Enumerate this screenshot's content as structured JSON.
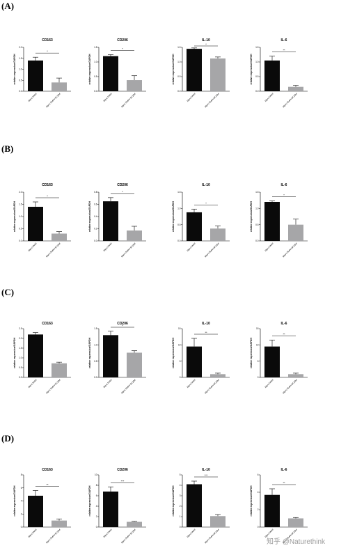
{
  "figure": {
    "watermark": "知乎 @Naturethink"
  },
  "colors": {
    "bar1": "#0a0a0a",
    "bar2": "#a6a6a8",
    "axis": "#000000"
  },
  "chart_data": [
    {
      "panel": "(A)",
      "charts": [
        {
          "type": "bar",
          "title": "CD163",
          "ylabel": "relative expression/GAPDH",
          "categories": [
            "Mφ+LTA4H",
            "Mφ+LTA4H+SC1B4"
          ],
          "values": [
            1.4,
            0.4
          ],
          "errors": [
            0.15,
            0.2
          ],
          "ylim": [
            0,
            2
          ],
          "yticks": [
            0,
            0.5,
            1.0,
            1.5,
            2.0
          ],
          "significance": "*"
        },
        {
          "type": "bar",
          "title": "CD206",
          "ylabel": "relative expression/GAPDH",
          "categories": [
            "Mφ+LTA4H",
            "Mφ+LTA4H+SC1B4"
          ],
          "values": [
            1.2,
            0.38
          ],
          "errors": [
            0.05,
            0.15
          ],
          "ylim": [
            0,
            1.5
          ],
          "yticks": [
            0,
            0.5,
            1.0,
            1.5
          ],
          "significance": "*"
        },
        {
          "type": "bar",
          "title": "IL-10",
          "ylabel": "relative expression/GAPDH",
          "categories": [
            "Mφ+LTA4H",
            "Mφ+LTA4H+SC1B4"
          ],
          "values": [
            1.45,
            1.12
          ],
          "errors": [
            0.03,
            0.05
          ],
          "ylim": [
            0,
            1.5
          ],
          "yticks": [
            0,
            0.5,
            1.0,
            1.5
          ],
          "significance": "*"
        },
        {
          "type": "bar",
          "title": "IL-6",
          "ylabel": "relative expression/GAPDH",
          "categories": [
            "Mφ+LTA4H",
            "Mφ+LTA4H+SC1B4"
          ],
          "values": [
            1.05,
            0.15
          ],
          "errors": [
            0.15,
            0.05
          ],
          "ylim": [
            0,
            1.5
          ],
          "yticks": [
            0,
            0.5,
            1.0,
            1.5
          ],
          "significance": "**"
        }
      ]
    },
    {
      "panel": "(B)",
      "charts": [
        {
          "type": "bar",
          "title": "CD163",
          "ylabel": "relative expression/GAPDH",
          "categories": [
            "Mφ+LTA4H",
            "Mφ+LTA4H+SC1B4"
          ],
          "values": [
            1.4,
            0.3
          ],
          "errors": [
            0.2,
            0.08
          ],
          "ylim": [
            0,
            2
          ],
          "yticks": [
            0,
            0.5,
            1.0,
            1.5,
            2.0
          ],
          "significance": "*"
        },
        {
          "type": "bar",
          "title": "CD206",
          "ylabel": "relative expression/GAPDH",
          "categories": [
            "Mφ+LTA4H",
            "Mφ+LTA4H+SC1B4"
          ],
          "values": [
            0.65,
            0.17
          ],
          "errors": [
            0.06,
            0.07
          ],
          "ylim": [
            0,
            0.8
          ],
          "yticks": [
            0,
            0.2,
            0.4,
            0.6,
            0.8
          ],
          "significance": "*"
        },
        {
          "type": "bar",
          "title": "IL-10",
          "ylabel": "relative expression/GAPDH",
          "categories": [
            "Mφ+LTA4H",
            "Mφ+LTA4H+SC1B4"
          ],
          "values": [
            0.88,
            0.38
          ],
          "errors": [
            0.1,
            0.08
          ],
          "ylim": [
            0,
            1.5
          ],
          "yticks": [
            0,
            0.5,
            1.0,
            1.5
          ],
          "significance": "*"
        },
        {
          "type": "bar",
          "title": "IL-6",
          "ylabel": "relative expression/GAPDH",
          "categories": [
            "Mφ+LTA4H",
            "Mφ+LTA4H+SC1B4"
          ],
          "values": [
            1.2,
            0.5
          ],
          "errors": [
            0.03,
            0.17
          ],
          "ylim": [
            0,
            1.5
          ],
          "yticks": [
            0,
            0.5,
            1.0,
            1.5
          ],
          "significance": "*"
        }
      ]
    },
    {
      "panel": "(C)",
      "charts": [
        {
          "type": "bar",
          "title": "CD163",
          "ylabel": "relative expression/GAPDH",
          "categories": [
            "Mφ+LTA4H",
            "Mφ+LTA4H+SC1B4"
          ],
          "values": [
            2.2,
            0.72
          ],
          "errors": [
            0.1,
            0.06
          ],
          "ylim": [
            0,
            2.5
          ],
          "yticks": [
            0,
            0.5,
            1.0,
            1.5,
            2.0,
            2.5
          ],
          "significance": ""
        },
        {
          "type": "bar",
          "title": "CD206",
          "ylabel": "relative expression/GAPDH",
          "categories": [
            "Mφ+LTA4H",
            "Mφ+LTA4H+SC1B4"
          ],
          "values": [
            1.3,
            0.76
          ],
          "errors": [
            0.12,
            0.06
          ],
          "ylim": [
            0,
            1.5
          ],
          "yticks": [
            0,
            0.5,
            1.0,
            1.5
          ],
          "significance": "*"
        },
        {
          "type": "bar",
          "title": "IL-10",
          "ylabel": "relative expression/GAPDH",
          "categories": [
            "Mφ+LTA4H",
            "Mφ+LTA4H+SC1B4"
          ],
          "values": [
            9.5,
            1.0
          ],
          "errors": [
            2.5,
            0.3
          ],
          "ylim": [
            0,
            15
          ],
          "yticks": [
            0,
            5,
            10,
            15
          ],
          "significance": "**"
        },
        {
          "type": "bar",
          "title": "IL-6",
          "ylabel": "relative expression/GAPDH",
          "categories": [
            "Mφ+LTA4H",
            "Mφ+LTA4H+SC1B4"
          ],
          "values": [
            9.5,
            1.0
          ],
          "errors": [
            2.0,
            0.3
          ],
          "ylim": [
            0,
            15
          ],
          "yticks": [
            0,
            5,
            10,
            15
          ],
          "significance": "**"
        }
      ]
    },
    {
      "panel": "(D)",
      "charts": [
        {
          "type": "bar",
          "title": "CD163",
          "ylabel": "relative expression/GAPDH",
          "categories": [
            "Mφ+LTA4H",
            "Mφ+LTA4H+SC1B4"
          ],
          "values": [
            4.8,
            1.0
          ],
          "errors": [
            0.8,
            0.25
          ],
          "ylim": [
            0,
            8
          ],
          "yticks": [
            0,
            2,
            4,
            6,
            8
          ],
          "significance": "**"
        },
        {
          "type": "bar",
          "title": "CD206",
          "ylabel": "relative expression/GAPDH",
          "categories": [
            "Mφ+LTA4H",
            "Mφ+LTA4H+SC1B4"
          ],
          "values": [
            6.8,
            1.0
          ],
          "errors": [
            0.9,
            0.1
          ],
          "ylim": [
            0,
            10
          ],
          "yticks": [
            0,
            2,
            4,
            6,
            8,
            10
          ],
          "significance": "***"
        },
        {
          "type": "bar",
          "title": "IL-10",
          "ylabel": "relative expression/GAPDH",
          "categories": [
            "Mφ+LTA4H",
            "Mφ+LTA4H+SC1B4"
          ],
          "values": [
            4.1,
            1.05
          ],
          "errors": [
            0.3,
            0.15
          ],
          "ylim": [
            0,
            5
          ],
          "yticks": [
            0,
            1,
            2,
            3,
            4,
            5
          ],
          "significance": "***"
        },
        {
          "type": "bar",
          "title": "IL-6",
          "ylabel": "relative expression/GAPDH",
          "categories": [
            "Mφ+LTA4H",
            "Mφ+LTA4H+SC1B4"
          ],
          "values": [
            3.7,
            1.0
          ],
          "errors": [
            0.7,
            0.1
          ],
          "ylim": [
            0,
            6
          ],
          "yticks": [
            0,
            2,
            4,
            6
          ],
          "significance": "**"
        }
      ]
    }
  ]
}
